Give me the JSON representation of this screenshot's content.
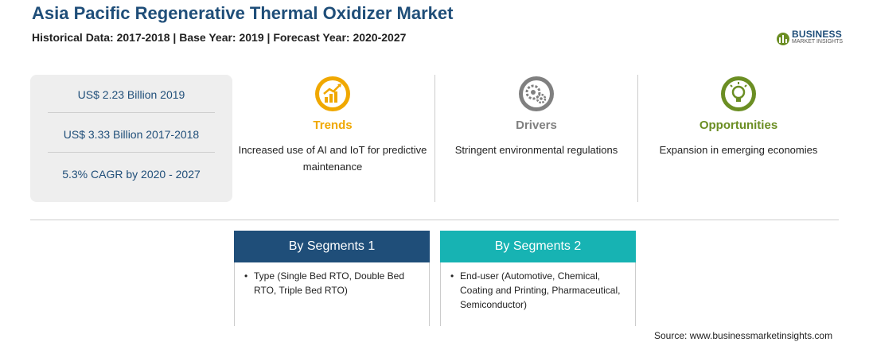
{
  "header": {
    "title": "Asia Pacific Regenerative Thermal Oxidizer Market",
    "subtitle": "Historical Data: 2017-2018 | Base Year: 2019 | Forecast Year: 2020-2027"
  },
  "logo": {
    "word": "BUSINESS",
    "sub": "MARKET INSIGHTS",
    "icon": "globe-logo-icon"
  },
  "stats": [
    {
      "text": "US$ 2.23 Billion 2019"
    },
    {
      "text": "US$ 3.33 Billion 2017-2018"
    },
    {
      "text": "5.3% CAGR by 2020 - 2027"
    }
  ],
  "columns": {
    "trends": {
      "title": "Trends",
      "text": "Increased use of AI and IoT for predictive maintenance",
      "icon": "trend-chart-icon",
      "color": "#f0a800"
    },
    "drivers": {
      "title": "Drivers",
      "text": "Stringent environmental regulations",
      "icon": "gears-icon",
      "color": "#808080"
    },
    "opportunities": {
      "title": "Opportunities",
      "text": "Expansion in emerging economies",
      "icon": "lightbulb-icon",
      "color": "#6b8e23"
    }
  },
  "segments": [
    {
      "title": "By Segments 1",
      "bullet": "•",
      "text": "Type (Single Bed RTO, Double Bed RTO, Triple Bed RTO)",
      "color": "#1f4e79"
    },
    {
      "title": "By Segments 2",
      "bullet": "•",
      "text": "End-user (Automotive, Chemical, Coating and Printing, Pharmaceutical, Semiconductor)",
      "color": "#17b3b3"
    }
  ],
  "source": "Source: www.businessmarketinsights.com"
}
